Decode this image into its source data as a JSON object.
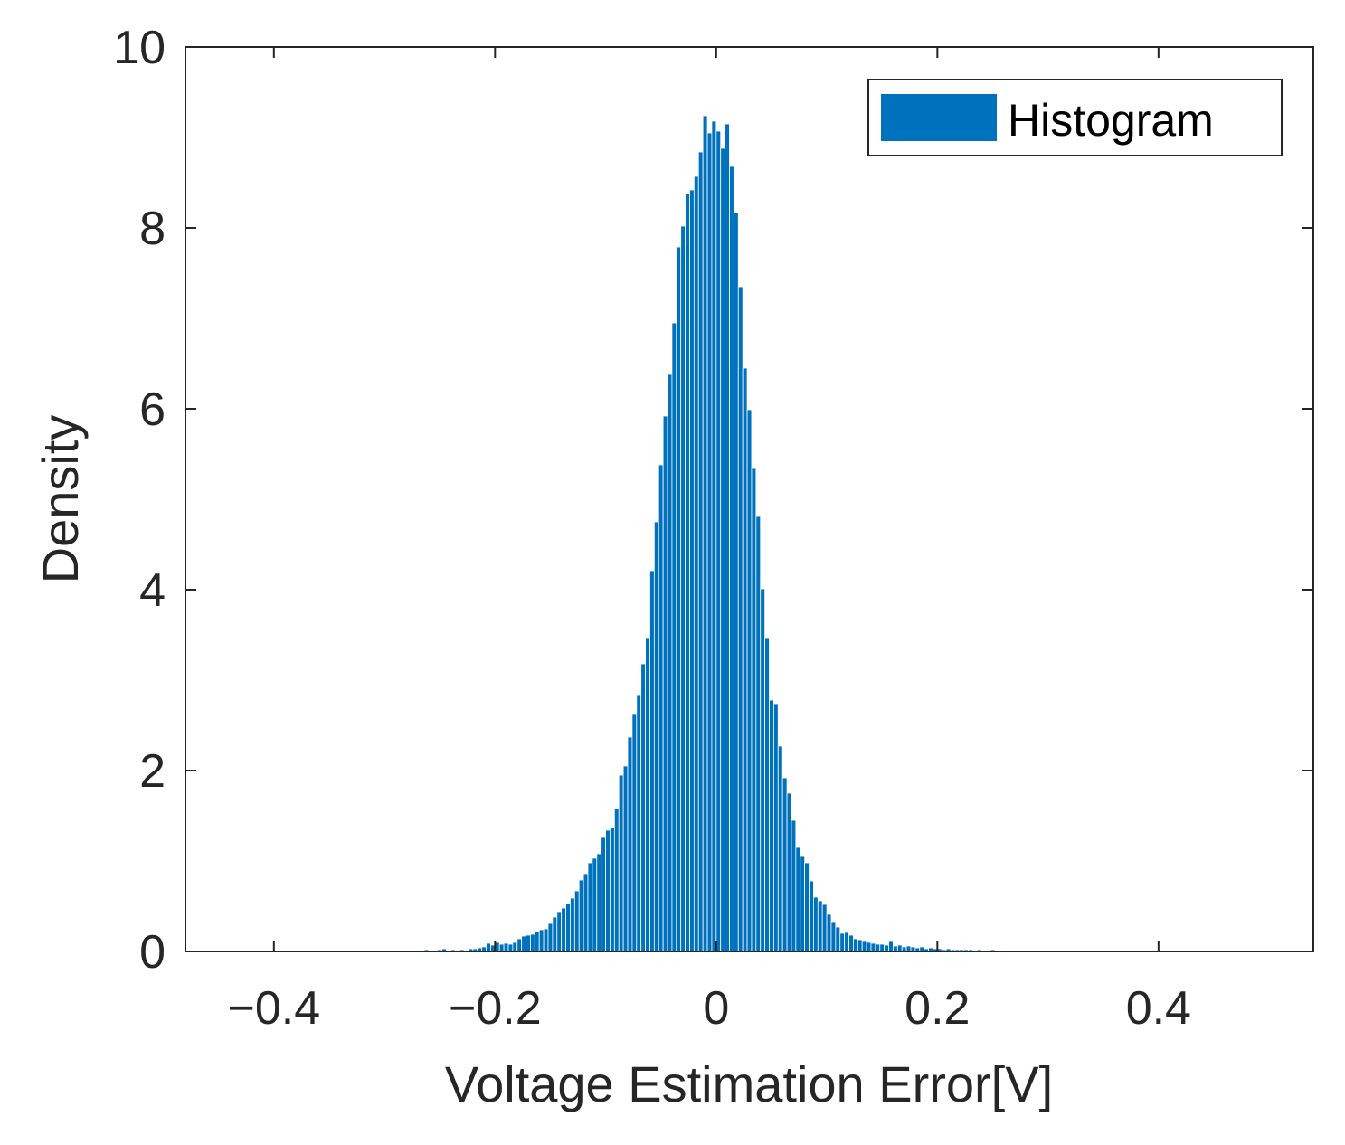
{
  "chart_data": {
    "type": "bar",
    "subtype": "histogram",
    "xlabel": "Voltage Estimation Error[V]",
    "ylabel": "Density",
    "xlim": [
      -0.48,
      0.54
    ],
    "ylim": [
      0,
      10
    ],
    "xticks": [
      -0.4,
      -0.2,
      0,
      0.2,
      0.4
    ],
    "xtick_labels": [
      "−0.4",
      "−0.2",
      "0",
      "0.2",
      "0.4"
    ],
    "yticks": [
      0,
      2,
      4,
      6,
      8,
      10
    ],
    "ytick_labels": [
      "0",
      "2",
      "4",
      "6",
      "8",
      "10"
    ],
    "bin_width": 0.004,
    "grid": false,
    "legend": {
      "position": "top-right",
      "entries": [
        "Histogram"
      ]
    },
    "series": [
      {
        "name": "Histogram",
        "color": "#0072BD",
        "x": [
          -0.302,
          -0.294,
          -0.282,
          -0.27,
          -0.262,
          -0.25,
          -0.246,
          -0.238,
          -0.23,
          -0.222,
          -0.218,
          -0.214,
          -0.21,
          -0.206,
          -0.202,
          -0.198,
          -0.194,
          -0.19,
          -0.186,
          -0.182,
          -0.178,
          -0.174,
          -0.17,
          -0.166,
          -0.162,
          -0.158,
          -0.154,
          -0.15,
          -0.146,
          -0.142,
          -0.138,
          -0.134,
          -0.13,
          -0.126,
          -0.122,
          -0.118,
          -0.114,
          -0.11,
          -0.106,
          -0.102,
          -0.098,
          -0.094,
          -0.09,
          -0.086,
          -0.082,
          -0.078,
          -0.074,
          -0.07,
          -0.066,
          -0.062,
          -0.058,
          -0.054,
          -0.05,
          -0.046,
          -0.042,
          -0.038,
          -0.034,
          -0.03,
          -0.026,
          -0.022,
          -0.018,
          -0.014,
          -0.01,
          -0.006,
          -0.002,
          0.002,
          0.006,
          0.01,
          0.014,
          0.018,
          0.022,
          0.026,
          0.03,
          0.034,
          0.038,
          0.042,
          0.046,
          0.05,
          0.054,
          0.058,
          0.062,
          0.066,
          0.07,
          0.074,
          0.078,
          0.082,
          0.086,
          0.09,
          0.094,
          0.098,
          0.102,
          0.106,
          0.11,
          0.114,
          0.118,
          0.122,
          0.126,
          0.13,
          0.134,
          0.138,
          0.142,
          0.146,
          0.15,
          0.154,
          0.158,
          0.162,
          0.166,
          0.17,
          0.174,
          0.178,
          0.182,
          0.186,
          0.19,
          0.194,
          0.198,
          0.202,
          0.206,
          0.21,
          0.214,
          0.218,
          0.222,
          0.226,
          0.23,
          0.234,
          0.238,
          0.242,
          0.246,
          0.25,
          0.254,
          0.258,
          0.262,
          0.266,
          0.27,
          0.274,
          0.278,
          0.282,
          0.286,
          0.29,
          0.294,
          0.298,
          0.302,
          0.31,
          0.318,
          0.326,
          0.334,
          0.342,
          0.35,
          0.362,
          0.378,
          0.394,
          0.41,
          0.43
        ],
        "values": [
          0.01,
          0.01,
          0.01,
          0.01,
          0.02,
          0.02,
          0.03,
          0.02,
          0.02,
          0.03,
          0.03,
          0.04,
          0.05,
          0.09,
          0.07,
          0.1,
          0.08,
          0.09,
          0.08,
          0.1,
          0.14,
          0.17,
          0.18,
          0.19,
          0.22,
          0.24,
          0.25,
          0.31,
          0.38,
          0.44,
          0.48,
          0.53,
          0.59,
          0.67,
          0.79,
          0.86,
          0.98,
          1.03,
          1.08,
          1.26,
          1.34,
          1.37,
          1.58,
          1.95,
          2.05,
          2.37,
          2.62,
          2.84,
          3.18,
          3.47,
          4.21,
          4.75,
          5.38,
          5.92,
          6.38,
          6.95,
          7.79,
          8.02,
          8.38,
          8.42,
          8.57,
          8.84,
          9.24,
          9.05,
          9.18,
          9.07,
          8.88,
          9.15,
          8.68,
          8.17,
          7.35,
          6.45,
          5.99,
          5.34,
          4.81,
          4.01,
          3.47,
          2.78,
          2.74,
          2.27,
          1.92,
          1.75,
          1.45,
          1.15,
          1.05,
          0.98,
          0.78,
          0.6,
          0.56,
          0.52,
          0.41,
          0.33,
          0.27,
          0.2,
          0.21,
          0.18,
          0.14,
          0.13,
          0.12,
          0.1,
          0.09,
          0.08,
          0.08,
          0.07,
          0.12,
          0.06,
          0.07,
          0.05,
          0.06,
          0.05,
          0.04,
          0.05,
          0.03,
          0.04,
          0.03,
          0.03,
          0.02,
          0.03,
          0.02,
          0.02,
          0.02,
          0.02,
          0.02,
          0.01,
          0.02,
          0.01,
          0.01,
          0.02,
          0.01,
          0.01,
          0.01,
          0.01,
          0.01,
          0.01,
          0.01,
          0.01,
          0.01,
          0.01,
          0.01,
          0.01,
          0.01,
          0.01,
          0.01,
          0.01,
          0.01,
          0.01,
          0.01,
          0.01,
          0.01,
          0.01,
          0.01,
          0.01
        ]
      }
    ]
  }
}
